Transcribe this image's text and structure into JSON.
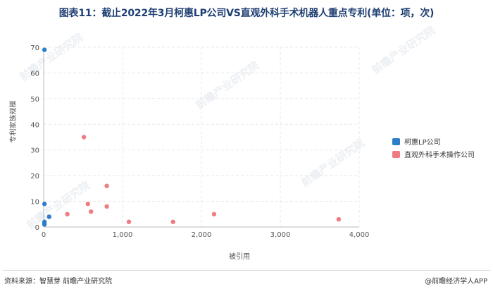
{
  "title": "图表11：截止2022年3月柯惠LP公司VS直观外科手术机器人重点专利(单位：项，次)",
  "source": "资料来源：智慧芽 前瞻产业研究院",
  "brand": "@前瞻经济学人APP",
  "watermark": "前瞻产业研究院",
  "chart_data": {
    "type": "scatter",
    "title": "图表11：截止2022年3月柯惠LP公司VS直观外科手术机器人重点专利(单位：项，次)",
    "xlabel": "被引用",
    "ylabel": "专利家族规模",
    "xlim": [
      0,
      4000
    ],
    "ylim": [
      0,
      70
    ],
    "xticks": [
      "0",
      "1,000",
      "2,000",
      "3,000",
      "4,000"
    ],
    "yticks": [
      "0",
      "10",
      "20",
      "30",
      "40",
      "50",
      "60",
      "70"
    ],
    "grid": true,
    "legend_position": "right",
    "series": [
      {
        "name": "柯惠LP公司",
        "color": "#2e7dc9",
        "points": [
          [
            10,
            69
          ],
          [
            10,
            9
          ],
          [
            10,
            2
          ],
          [
            10,
            1.5
          ],
          [
            10,
            1
          ],
          [
            70,
            4
          ]
        ]
      },
      {
        "name": "直观外科手术操作公司",
        "color": "#f07c82",
        "points": [
          [
            510,
            35
          ],
          [
            800,
            16
          ],
          [
            560,
            9
          ],
          [
            800,
            8
          ],
          [
            300,
            5
          ],
          [
            600,
            6
          ],
          [
            1080,
            2
          ],
          [
            1640,
            2
          ],
          [
            2160,
            5
          ],
          [
            3740,
            3
          ]
        ]
      }
    ]
  }
}
